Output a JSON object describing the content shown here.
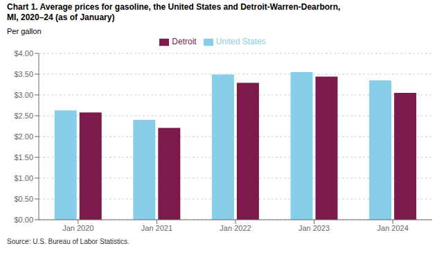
{
  "chart_data": {
    "type": "bar",
    "title": "Chart 1. Average prices for gasoline, the United States and Detroit-Warren-Dearborn,\nMI, 2020–24 (as of January)",
    "ylabel": "Per gallon",
    "source": "Source: U.S. Bureau of Labor Statistics.",
    "categories": [
      "Jan 2020",
      "Jan 2021",
      "Jan 2022",
      "Jan 2023",
      "Jan 2024"
    ],
    "series": [
      {
        "name": "United States",
        "color": "#87CEEB",
        "values": [
          2.63,
          2.4,
          3.49,
          3.55,
          3.35
        ]
      },
      {
        "name": "Detroit",
        "color": "#7B1A4B",
        "values": [
          2.58,
          2.21,
          3.29,
          3.44,
          3.05
        ]
      }
    ],
    "ylim": [
      0,
      4.0
    ],
    "yticks": [
      {
        "value": 0.0,
        "label": "$0.00"
      },
      {
        "value": 0.5,
        "label": "$0.50"
      },
      {
        "value": 1.0,
        "label": "$1.00"
      },
      {
        "value": 1.5,
        "label": "$1.50"
      },
      {
        "value": 2.0,
        "label": "$2.00"
      },
      {
        "value": 2.5,
        "label": "$2.50"
      },
      {
        "value": 3.0,
        "label": "$3.00"
      },
      {
        "value": 3.5,
        "label": "$3.50"
      },
      {
        "value": 4.0,
        "label": "$4.00"
      }
    ],
    "grid": true,
    "legend": "top"
  }
}
